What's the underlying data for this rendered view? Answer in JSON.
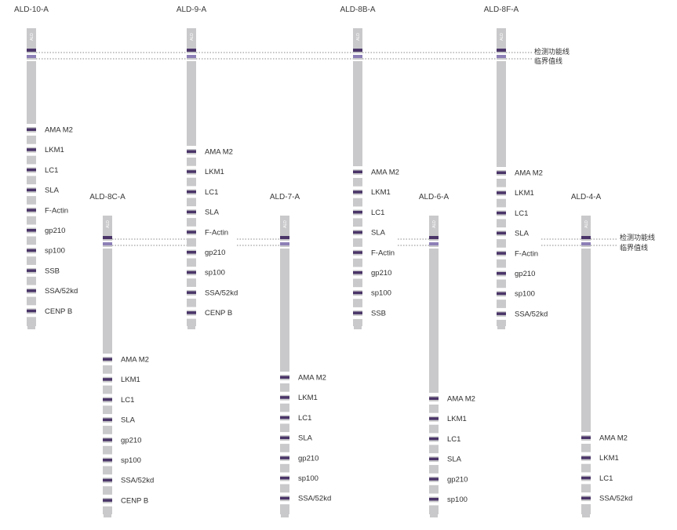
{
  "strip_label": "ALD",
  "legend": {
    "control_line": "检测功能线",
    "cutoff_line": "临界值线"
  },
  "strips": [
    {
      "id": "ALD-10-A",
      "bands": [
        "AMA M2",
        "LKM1",
        "LC1",
        "SLA",
        "F-Actin",
        "gp210",
        "sp100",
        "SSB",
        "SSA/52kd",
        "CENP B"
      ]
    },
    {
      "id": "ALD-8C-A",
      "bands": [
        "AMA M2",
        "LKM1",
        "LC1",
        "SLA",
        "gp210",
        "sp100",
        "SSA/52kd",
        "CENP B"
      ]
    },
    {
      "id": "ALD-9-A",
      "bands": [
        "AMA M2",
        "LKM1",
        "LC1",
        "SLA",
        "F-Actin",
        "gp210",
        "sp100",
        "SSA/52kd",
        "CENP B"
      ]
    },
    {
      "id": "ALD-7-A",
      "bands": [
        "AMA M2",
        "LKM1",
        "LC1",
        "SLA",
        "gp210",
        "sp100",
        "SSA/52kd"
      ]
    },
    {
      "id": "ALD-8B-A",
      "bands": [
        "AMA M2",
        "LKM1",
        "LC1",
        "SLA",
        "F-Actin",
        "gp210",
        "sp100",
        "SSB"
      ]
    },
    {
      "id": "ALD-6-A",
      "bands": [
        "AMA M2",
        "LKM1",
        "LC1",
        "SLA",
        "gp210",
        "sp100"
      ]
    },
    {
      "id": "ALD-8F-A",
      "bands": [
        "AMA M2",
        "LKM1",
        "LC1",
        "SLA",
        "F-Actin",
        "gp210",
        "sp100",
        "SSA/52kd"
      ]
    },
    {
      "id": "ALD-4-A",
      "bands": [
        "AMA M2",
        "LKM1",
        "LC1",
        "SSA/52kd"
      ]
    }
  ]
}
